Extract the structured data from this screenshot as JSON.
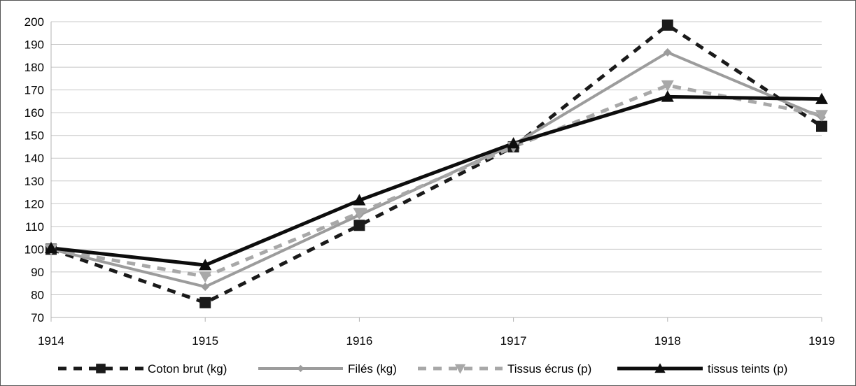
{
  "chart_data": {
    "type": "line",
    "title": "",
    "xlabel": "",
    "ylabel": "",
    "categories": [
      "1914",
      "1915",
      "1916",
      "1917",
      "1918",
      "1919"
    ],
    "ylim": [
      70,
      200
    ],
    "yticks": [
      70,
      80,
      90,
      100,
      110,
      120,
      130,
      140,
      150,
      160,
      170,
      180,
      190,
      200
    ],
    "grid": true,
    "legend_position": "bottom",
    "series": [
      {
        "name": "Coton brut (kg)",
        "values": [
          100,
          76.5,
          110.5,
          145,
          198.5,
          154
        ],
        "color": "#1a1a1a",
        "dash": "dashed",
        "marker": "square"
      },
      {
        "name": "Filés (kg)",
        "values": [
          100,
          83.5,
          115,
          146,
          186.5,
          158
        ],
        "color": "#9c9c9c",
        "dash": "solid",
        "marker": "diamond"
      },
      {
        "name": "Tissus écrus (p)",
        "values": [
          100,
          88,
          116,
          145,
          172,
          159
        ],
        "color": "#a8a8a8",
        "dash": "dashed",
        "marker": "triangle-down"
      },
      {
        "name": "tissus teints (p)",
        "values": [
          100.5,
          93,
          121.5,
          146.5,
          167,
          166
        ],
        "color": "#0d0d0d",
        "dash": "solid",
        "marker": "triangle-up"
      }
    ]
  }
}
